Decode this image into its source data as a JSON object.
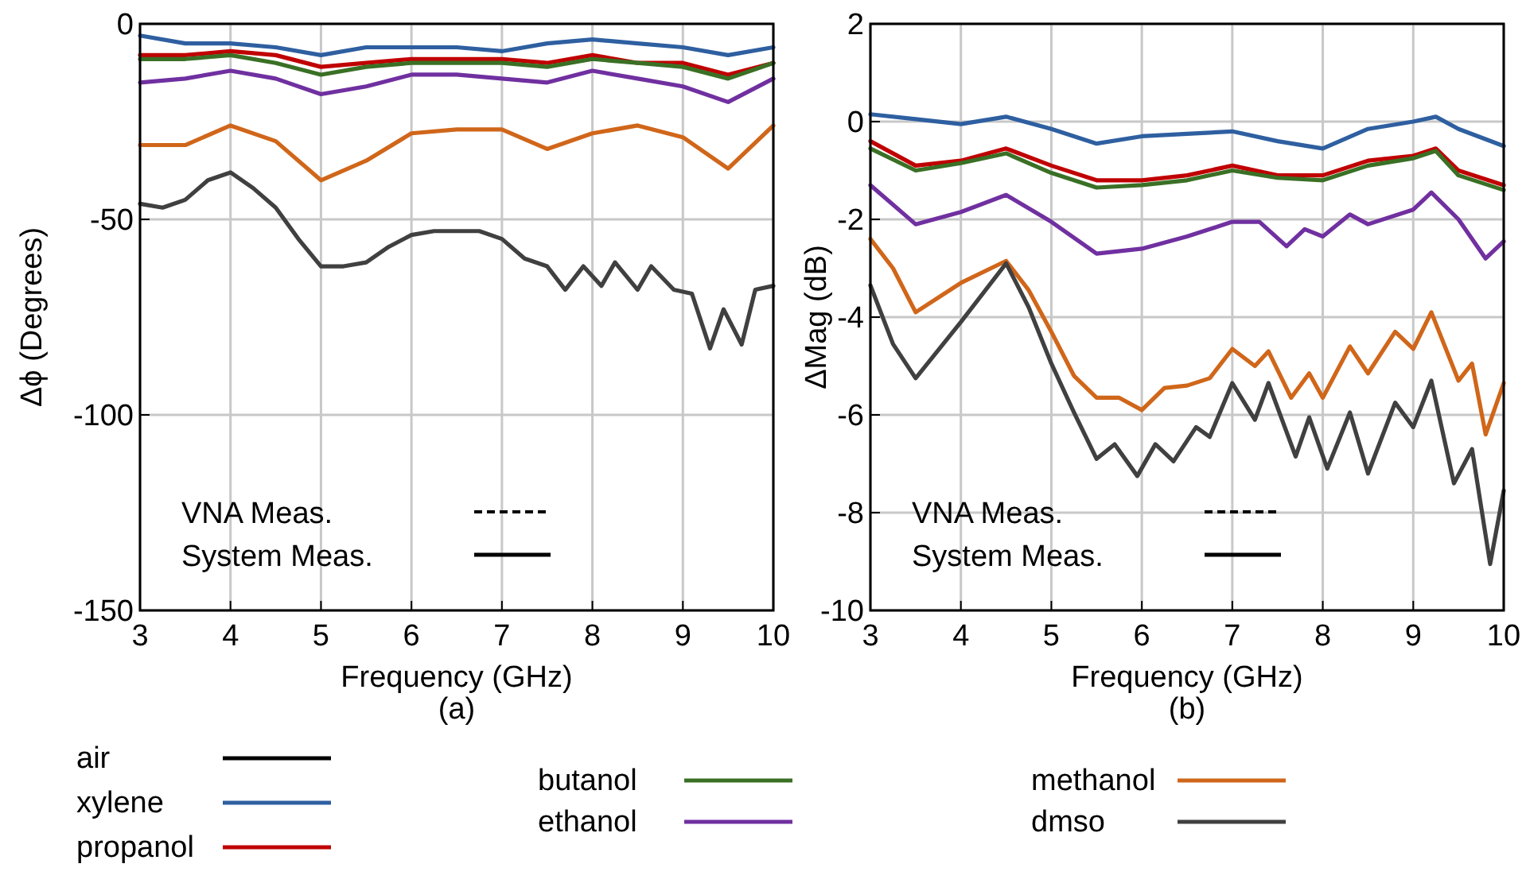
{
  "chart_data": [
    {
      "type": "line",
      "xlabel": "Frequency (GHz)",
      "ylabel": "Δϕ (Degrees)",
      "xlim": [
        3,
        10
      ],
      "xticks": [
        3,
        4,
        5,
        6,
        7,
        8,
        9,
        10
      ],
      "ylim": [
        -150,
        0
      ],
      "yticks": [
        -150,
        -100,
        -50,
        0
      ],
      "grid": true,
      "legend": "bottom",
      "line_style": "solid",
      "annotations": [
        "VNA Meas.",
        "System Meas.",
        "(a)"
      ],
      "x": [
        3,
        3.5,
        4,
        4.5,
        5,
        5.5,
        6,
        6.5,
        7,
        7.5,
        8,
        8.5,
        9,
        9.5,
        10
      ],
      "series": [
        {
          "name": "air",
          "color": "#000000",
          "values": [
            null,
            null,
            null,
            null,
            null,
            null,
            null,
            null,
            null,
            null,
            null,
            null,
            null,
            null,
            null
          ]
        },
        {
          "name": "xylene",
          "color": "#2e5fa0",
          "values": [
            -3,
            -5,
            -5,
            -6,
            -8,
            -6,
            -6,
            -6,
            -7,
            -5,
            -4,
            -5,
            -6,
            -8,
            -6
          ]
        },
        {
          "name": "propanol",
          "color": "#c00000",
          "values": [
            -8,
            -8,
            -7,
            -8,
            -11,
            -10,
            -9,
            -9,
            -9,
            -10,
            -8,
            -10,
            -10,
            -13,
            -10
          ]
        },
        {
          "name": "butanol",
          "color": "#3a7025",
          "values": [
            -9,
            -9,
            -8,
            -10,
            -13,
            -11,
            -10,
            -10,
            -10,
            -11,
            -9,
            -10,
            -11,
            -14,
            -10
          ]
        },
        {
          "name": "ethanol",
          "color": "#7030a0",
          "values": [
            -15,
            -14,
            -12,
            -14,
            -18,
            -16,
            -13,
            -13,
            -14,
            -15,
            -12,
            -14,
            -16,
            -20,
            -14
          ]
        },
        {
          "name": "methanol",
          "color": "#d0661a",
          "values": [
            -31,
            -31,
            -26,
            -30,
            -40,
            -35,
            -28,
            -27,
            -27,
            -32,
            -28,
            -26,
            -29,
            -37,
            -26
          ]
        },
        {
          "name": "dmso",
          "color": "#404040",
          "x": [
            3,
            3.25,
            3.5,
            3.75,
            4,
            4.25,
            4.5,
            4.75,
            5,
            5.25,
            5.5,
            5.75,
            6,
            6.25,
            6.5,
            6.75,
            7,
            7.25,
            7.5,
            7.7,
            7.9,
            8.1,
            8.25,
            8.5,
            8.65,
            8.9,
            9.1,
            9.3,
            9.45,
            9.65,
            9.8,
            10
          ],
          "values": [
            -46,
            -47,
            -45,
            -40,
            -38,
            -42,
            -47,
            -55,
            -62,
            -62,
            -61,
            -57,
            -54,
            -53,
            -53,
            -53,
            -55,
            -60,
            -62,
            -68,
            -62,
            -67,
            -61,
            -68,
            -62,
            -68,
            -69,
            -83,
            -73,
            -82,
            -68,
            -67
          ]
        }
      ]
    },
    {
      "type": "line",
      "xlabel": "Frequency (GHz)",
      "ylabel": "ΔMag (dB)",
      "xlim": [
        3,
        10
      ],
      "xticks": [
        3,
        4,
        5,
        6,
        7,
        8,
        9,
        10
      ],
      "ylim": [
        -10,
        2
      ],
      "yticks": [
        -10,
        -8,
        -6,
        -4,
        -2,
        0,
        2
      ],
      "grid": true,
      "line_style": "solid",
      "annotations": [
        "VNA Meas.",
        "System Meas.",
        "(b)"
      ],
      "x": [
        3,
        3.5,
        4,
        4.5,
        5,
        5.5,
        6,
        6.5,
        7,
        7.5,
        8,
        8.5,
        9,
        9.25,
        9.5,
        10
      ],
      "series": [
        {
          "color": "#2e5fa0",
          "values": [
            0.15,
            0.05,
            -0.05,
            0.1,
            -0.15,
            -0.45,
            -0.3,
            -0.25,
            -0.2,
            -0.4,
            -0.55,
            -0.15,
            0,
            0.1,
            -0.15,
            -0.5
          ]
        },
        {
          "color": "#c00000",
          "values": [
            -0.4,
            -0.9,
            -0.8,
            -0.55,
            -0.9,
            -1.2,
            -1.2,
            -1.1,
            -0.9,
            -1.1,
            -1.1,
            -0.8,
            -0.7,
            -0.55,
            -1,
            -1.3
          ]
        },
        {
          "color": "#3a7025",
          "values": [
            -0.55,
            -1,
            -0.85,
            -0.65,
            -1.05,
            -1.35,
            -1.3,
            -1.2,
            -1,
            -1.15,
            -1.2,
            -0.9,
            -0.75,
            -0.6,
            -1.1,
            -1.4
          ]
        },
        {
          "color": "#7030a0",
          "x": [
            3,
            3.5,
            4,
            4.5,
            5,
            5.5,
            6,
            6.5,
            7,
            7.3,
            7.6,
            7.8,
            8,
            8.3,
            8.5,
            9,
            9.2,
            9.5,
            9.8,
            10
          ],
          "values": [
            -1.3,
            -2.1,
            -1.85,
            -1.5,
            -2.05,
            -2.7,
            -2.6,
            -2.35,
            -2.05,
            -2.05,
            -2.55,
            -2.2,
            -2.35,
            -1.9,
            -2.1,
            -1.8,
            -1.45,
            -2,
            -2.8,
            -2.45
          ]
        },
        {
          "color": "#d0661a",
          "x": [
            3,
            3.25,
            3.5,
            4,
            4.5,
            4.75,
            5,
            5.25,
            5.5,
            5.75,
            6,
            6.25,
            6.5,
            6.75,
            7,
            7.25,
            7.4,
            7.65,
            7.85,
            8,
            8.3,
            8.5,
            8.8,
            9,
            9.2,
            9.5,
            9.65,
            9.8,
            10
          ],
          "values": [
            -2.4,
            -3,
            -3.9,
            -3.3,
            -2.85,
            -3.45,
            -4.3,
            -5.2,
            -5.65,
            -5.65,
            -5.9,
            -5.45,
            -5.4,
            -5.25,
            -4.65,
            -5,
            -4.7,
            -5.65,
            -5.15,
            -5.65,
            -4.6,
            -5.15,
            -4.3,
            -4.65,
            -3.9,
            -5.3,
            -4.95,
            -6.4,
            -5.35
          ]
        },
        {
          "color": "#404040",
          "x": [
            3,
            3.25,
            3.5,
            4,
            4.5,
            4.75,
            5,
            5.25,
            5.5,
            5.7,
            5.95,
            6.15,
            6.35,
            6.6,
            6.75,
            7,
            7.25,
            7.4,
            7.7,
            7.85,
            8.05,
            8.3,
            8.5,
            8.8,
            9,
            9.2,
            9.45,
            9.65,
            9.85,
            10
          ],
          "values": [
            -3.35,
            -4.55,
            -5.25,
            -4.1,
            -2.9,
            -3.8,
            -4.95,
            -5.95,
            -6.9,
            -6.6,
            -7.25,
            -6.6,
            -6.95,
            -6.25,
            -6.45,
            -5.35,
            -6.1,
            -5.35,
            -6.85,
            -6.05,
            -7.1,
            -5.95,
            -7.2,
            -5.75,
            -6.25,
            -5.3,
            -7.4,
            -6.7,
            -9.05,
            -7.55
          ]
        }
      ]
    }
  ]
}
